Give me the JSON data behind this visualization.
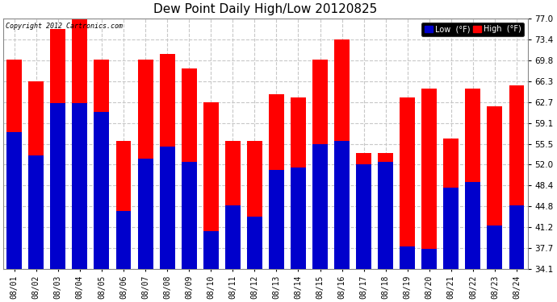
{
  "title": "Dew Point Daily High/Low 20120825",
  "copyright": "Copyright 2012 Cartronics.com",
  "dates": [
    "08/01",
    "08/02",
    "08/03",
    "08/04",
    "08/05",
    "08/06",
    "08/07",
    "08/08",
    "08/09",
    "08/10",
    "08/11",
    "08/12",
    "08/13",
    "08/14",
    "08/15",
    "08/16",
    "08/17",
    "08/18",
    "08/19",
    "08/20",
    "08/21",
    "08/22",
    "08/23",
    "08/24"
  ],
  "high_values": [
    70.0,
    66.3,
    75.2,
    77.0,
    70.0,
    56.0,
    70.0,
    71.0,
    68.5,
    62.7,
    56.0,
    56.0,
    64.0,
    63.5,
    70.0,
    73.4,
    54.0,
    54.0,
    63.5,
    65.0,
    56.5,
    65.0,
    62.0,
    65.5
  ],
  "low_values": [
    57.5,
    53.5,
    62.5,
    62.5,
    61.0,
    44.0,
    53.0,
    55.0,
    52.5,
    40.5,
    45.0,
    43.0,
    51.0,
    51.5,
    55.5,
    56.0,
    52.0,
    52.5,
    38.0,
    37.5,
    48.0,
    49.0,
    41.5,
    45.0
  ],
  "ylim": [
    34.1,
    77.0
  ],
  "yticks": [
    34.1,
    37.7,
    41.2,
    44.8,
    48.4,
    52.0,
    55.5,
    59.1,
    62.7,
    66.3,
    69.8,
    73.4,
    77.0
  ],
  "bar_width": 0.7,
  "high_color": "#ff0000",
  "low_color": "#0000cc",
  "background_color": "#ffffff",
  "plot_bg_color": "#ffffff",
  "grid_color": "#c8c8c8",
  "title_fontsize": 11,
  "legend_high_label": "High  (°F)",
  "legend_low_label": "Low  (°F)"
}
